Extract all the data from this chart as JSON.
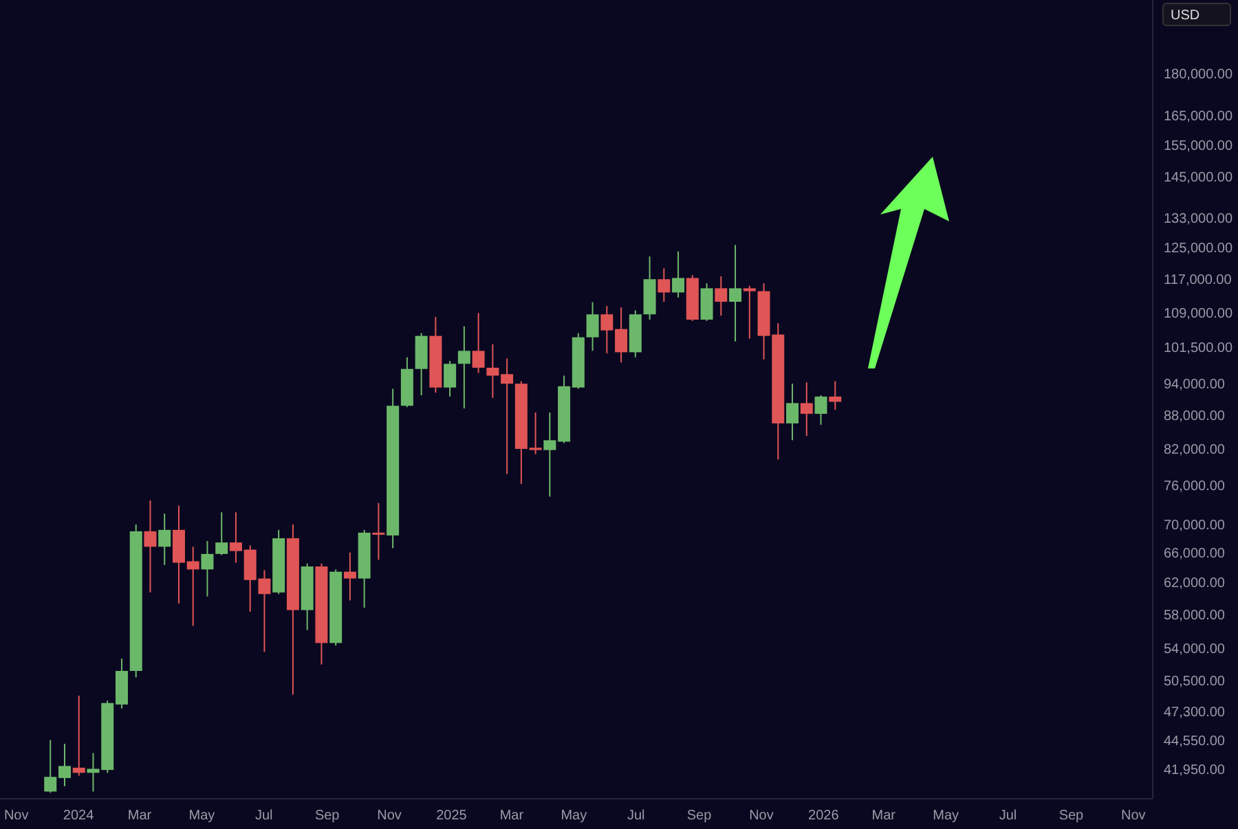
{
  "chart_data": {
    "type": "candlestick",
    "annotations": [
      "USD"
    ],
    "log": true,
    "grid": false,
    "legend": false,
    "x": [
      "2023-12-04",
      "2023-12-18",
      "2024-01-01",
      "2024-01-15",
      "2024-01-29",
      "2024-02-12",
      "2024-02-26",
      "2024-03-11",
      "2024-03-25",
      "2024-04-08",
      "2024-04-22",
      "2024-05-06",
      "2024-05-20",
      "2024-06-03",
      "2024-06-17",
      "2024-07-01",
      "2024-07-15",
      "2024-07-29",
      "2024-08-12",
      "2024-08-26",
      "2024-09-09",
      "2024-09-23",
      "2024-10-07",
      "2024-10-21",
      "2024-11-04",
      "2024-11-18",
      "2024-12-02",
      "2024-12-16",
      "2024-12-30",
      "2025-01-13",
      "2025-01-27",
      "2025-02-10",
      "2025-02-24",
      "2025-03-10",
      "2025-03-24",
      "2025-04-07",
      "2025-04-21",
      "2025-05-05",
      "2025-05-19",
      "2025-06-02",
      "2025-06-16",
      "2025-06-30",
      "2025-07-14",
      "2025-07-28",
      "2025-08-11",
      "2025-08-25",
      "2025-09-08",
      "2025-09-22",
      "2025-10-06",
      "2025-10-20",
      "2025-11-03",
      "2025-11-17",
      "2025-12-01",
      "2025-12-15",
      "2025-12-29",
      "2026-01-12"
    ],
    "ohlc": [
      [
        40000,
        44550,
        39900,
        41250
      ],
      [
        41150,
        44200,
        40450,
        42200
      ],
      [
        42050,
        48900,
        41350,
        41600
      ],
      [
        41600,
        43350,
        40000,
        41950
      ],
      [
        41850,
        48400,
        41600,
        48150
      ],
      [
        48000,
        52850,
        47600,
        51500
      ],
      [
        51500,
        70000,
        50800,
        69000
      ],
      [
        69000,
        73600,
        60700,
        66800
      ],
      [
        66800,
        71600,
        64300,
        69200
      ],
      [
        69200,
        72800,
        59300,
        64600
      ],
      [
        64800,
        66800,
        56600,
        63700
      ],
      [
        63700,
        67600,
        60200,
        65800
      ],
      [
        65800,
        71800,
        65650,
        67400
      ],
      [
        67400,
        71800,
        64600,
        66200
      ],
      [
        66400,
        67000,
        58300,
        62300
      ],
      [
        62500,
        63600,
        53600,
        60500
      ],
      [
        60700,
        69200,
        60500,
        68000
      ],
      [
        68000,
        70000,
        49000,
        58500
      ],
      [
        58500,
        64500,
        56100,
        64100
      ],
      [
        64100,
        64500,
        52200,
        54600
      ],
      [
        54600,
        63700,
        54300,
        63400
      ],
      [
        63400,
        66000,
        59700,
        62500
      ],
      [
        62500,
        69200,
        58800,
        68800
      ],
      [
        68800,
        73200,
        65000,
        68600
      ],
      [
        68400,
        93000,
        66600,
        89750
      ],
      [
        89750,
        99350,
        89500,
        96950
      ],
      [
        96950,
        104500,
        91750,
        103900
      ],
      [
        103900,
        108100,
        92250,
        93250
      ],
      [
        93250,
        98600,
        91500,
        98000
      ],
      [
        98000,
        106000,
        89250,
        100700
      ],
      [
        100700,
        109000,
        96150,
        97200
      ],
      [
        97200,
        102100,
        91250,
        95600
      ],
      [
        95900,
        99100,
        77800,
        94000
      ],
      [
        94000,
        94500,
        76200,
        82000
      ],
      [
        82200,
        88500,
        81100,
        81800
      ],
      [
        81800,
        88500,
        74200,
        83500
      ],
      [
        83250,
        95600,
        83000,
        93500
      ],
      [
        93250,
        104500,
        93000,
        103600
      ],
      [
        103600,
        111500,
        100700,
        108700
      ],
      [
        108700,
        110600,
        100200,
        105100
      ],
      [
        105400,
        110300,
        98300,
        100400
      ],
      [
        100400,
        109600,
        99350,
        108700
      ],
      [
        108700,
        122700,
        107500,
        117000
      ],
      [
        117000,
        119700,
        111600,
        113800
      ],
      [
        113800,
        124000,
        112600,
        117300
      ],
      [
        117300,
        118000,
        107200,
        107500
      ],
      [
        107500,
        116000,
        107200,
        114800
      ],
      [
        114800,
        117700,
        108400,
        111600
      ],
      [
        111600,
        125700,
        102700,
        114800
      ],
      [
        114800,
        115400,
        103300,
        114100
      ],
      [
        114100,
        116000,
        98900,
        103900
      ],
      [
        104200,
        106700,
        80200,
        86500
      ],
      [
        86500,
        94000,
        83500,
        90250
      ],
      [
        90250,
        94250,
        84250,
        88250
      ],
      [
        88250,
        91750,
        86250,
        91500
      ],
      [
        91500,
        94500,
        89000,
        90500
      ]
    ],
    "colors": [
      "#6cb86a",
      "#6cb86a",
      "#e05555",
      "#6cb86a",
      "#6cb86a",
      "#6cb86a",
      "#6cb86a",
      "#e05555",
      "#6cb86a",
      "#e05555",
      "#e05555",
      "#6cb86a",
      "#6cb86a",
      "#e05555",
      "#e05555",
      "#e05555",
      "#6cb86a",
      "#e05555",
      "#6cb86a",
      "#e05555",
      "#6cb86a",
      "#e05555",
      "#6cb86a",
      "#e05555",
      "#6cb86a",
      "#6cb86a",
      "#6cb86a",
      "#e05555",
      "#6cb86a",
      "#6cb86a",
      "#e05555",
      "#e05555",
      "#e05555",
      "#e05555",
      "#e05555",
      "#6cb86a",
      "#6cb86a",
      "#6cb86a",
      "#6cb86a",
      "#e05555",
      "#e05555",
      "#6cb86a",
      "#6cb86a",
      "#e05555",
      "#6cb86a",
      "#e05555",
      "#6cb86a",
      "#e05555",
      "#6cb86a",
      "#e05555",
      "#e05555",
      "#e05555",
      "#6cb86a",
      "#e05555",
      "#6cb86a",
      "#e05555"
    ],
    "xlim": [
      "2023-10-16",
      "2026-11-20"
    ],
    "xticks": [
      {
        "value": "2023-11-01",
        "label": "Nov"
      },
      {
        "value": "2024-01-01",
        "label": "2024"
      },
      {
        "value": "2024-03-01",
        "label": "Mar"
      },
      {
        "value": "2024-05-01",
        "label": "May"
      },
      {
        "value": "2024-07-01",
        "label": "Jul"
      },
      {
        "value": "2024-09-01",
        "label": "Sep"
      },
      {
        "value": "2024-11-01",
        "label": "Nov"
      },
      {
        "value": "2025-01-01",
        "label": "2025"
      },
      {
        "value": "2025-03-01",
        "label": "Mar"
      },
      {
        "value": "2025-05-01",
        "label": "May"
      },
      {
        "value": "2025-07-01",
        "label": "Jul"
      },
      {
        "value": "2025-09-01",
        "label": "Sep"
      },
      {
        "value": "2025-11-01",
        "label": "Nov"
      },
      {
        "value": "2026-01-01",
        "label": "2026"
      },
      {
        "value": "2026-03-01",
        "label": "Mar"
      },
      {
        "value": "2026-05-01",
        "label": "May"
      },
      {
        "value": "2026-07-01",
        "label": "Jul"
      },
      {
        "value": "2026-09-01",
        "label": "Sep"
      },
      {
        "value": "2026-11-01",
        "label": "Nov"
      }
    ],
    "ylim": [
      39400,
      210000
    ],
    "yticks": [
      {
        "value": 41950,
        "label": "41,950.00"
      },
      {
        "value": 44550,
        "label": "44,550.00"
      },
      {
        "value": 47300,
        "label": "47,300.00"
      },
      {
        "value": 50500,
        "label": "50,500.00"
      },
      {
        "value": 54000,
        "label": "54,000.00"
      },
      {
        "value": 58000,
        "label": "58,000.00"
      },
      {
        "value": 62000,
        "label": "62,000.00"
      },
      {
        "value": 66000,
        "label": "66,000.00"
      },
      {
        "value": 70000,
        "label": "70,000.00"
      },
      {
        "value": 76000,
        "label": "76,000.00"
      },
      {
        "value": 82000,
        "label": "82,000.00"
      },
      {
        "value": 88000,
        "label": "88,000.00"
      },
      {
        "value": 94000,
        "label": "94,000.00"
      },
      {
        "value": 101500,
        "label": "101,500.00"
      },
      {
        "value": 109000,
        "label": "109,000.00"
      },
      {
        "value": 117000,
        "label": "117,000.00"
      },
      {
        "value": 125000,
        "label": "125,000.00"
      },
      {
        "value": 133000,
        "label": "133,000.00"
      },
      {
        "value": 145000,
        "label": "145,000.00"
      },
      {
        "value": 155000,
        "label": "155,000.00"
      },
      {
        "value": 165000,
        "label": "165,000.00"
      },
      {
        "value": 180000,
        "label": "180,000.00"
      }
    ]
  }
}
